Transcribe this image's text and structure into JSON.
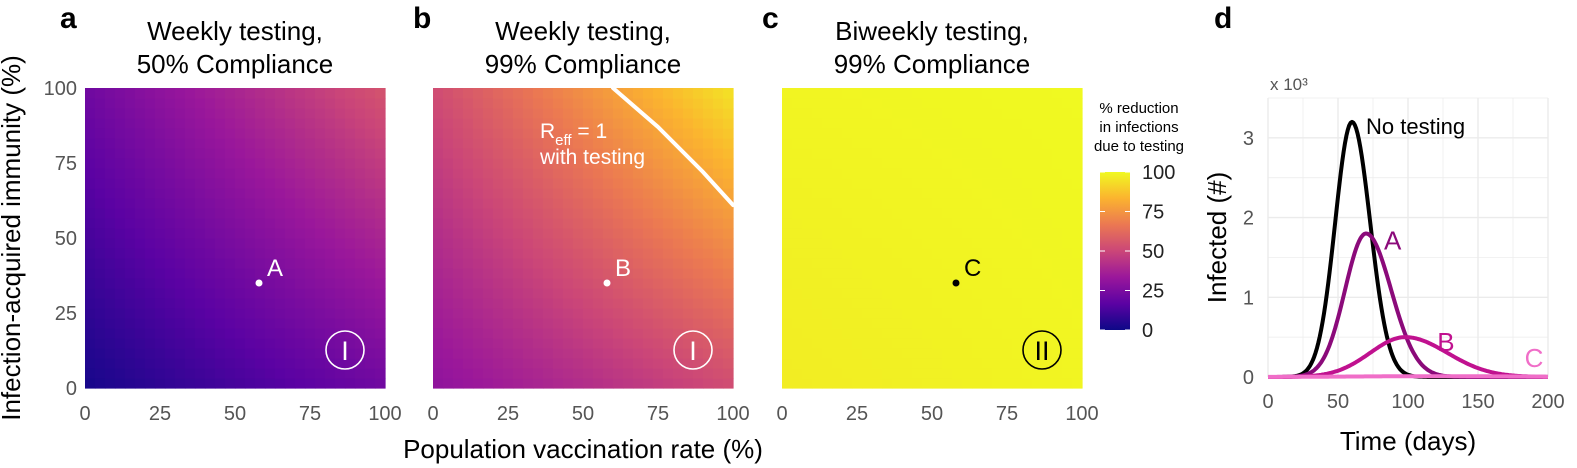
{
  "figure": {
    "shared_xlabel": "Population vaccination rate (%)",
    "shared_ylabel": "Infection-acquired immunity (%)"
  },
  "colorbar": {
    "title_lines": [
      "% reduction",
      "in infections",
      "due to testing"
    ],
    "ticks": [
      0,
      25,
      50,
      75,
      100
    ],
    "range": [
      0,
      100
    ],
    "stops": [
      "#0d0887",
      "#5b02a3",
      "#9a179b",
      "#cb4678",
      "#eb7852",
      "#fbb32f",
      "#f0f921"
    ]
  },
  "chart_data": [
    {
      "type": "heatmap",
      "panel": "a",
      "title_lines": [
        "Weekly testing,",
        "50% Compliance"
      ],
      "xlim": [
        0,
        100
      ],
      "ylim": [
        0,
        100
      ],
      "x_ticks": [
        0,
        25,
        50,
        75,
        100
      ],
      "y_ticks": [
        0,
        25,
        50,
        75,
        100
      ],
      "corner_values": {
        "x0_y0": 2,
        "x100_y0": 22,
        "x0_y100": 22,
        "x100_y100": 55
      },
      "point": {
        "label": "A",
        "x": 58,
        "y": 35,
        "color": "#ffffff"
      },
      "regime_label": "I"
    },
    {
      "type": "heatmap",
      "panel": "b",
      "title_lines": [
        "Weekly testing,",
        "99% Compliance"
      ],
      "xlim": [
        0,
        100
      ],
      "ylim": [
        0,
        100
      ],
      "x_ticks": [
        0,
        25,
        50,
        75,
        100
      ],
      "y_ticks": [
        0,
        25,
        50,
        75,
        100
      ],
      "corner_values": {
        "x0_y0": 30,
        "x100_y0": 52,
        "x0_y100": 52,
        "x100_y100": 95
      },
      "point": {
        "label": "B",
        "x": 58,
        "y": 35,
        "color": "#ffffff"
      },
      "contour": {
        "label_parts": [
          "R",
          "eff",
          " = 1",
          "with testing"
        ],
        "points": [
          [
            60,
            100
          ],
          [
            75,
            87
          ],
          [
            90,
            72
          ],
          [
            100,
            61
          ]
        ]
      },
      "regime_label": "I"
    },
    {
      "type": "heatmap",
      "panel": "c",
      "title_lines": [
        "Biweekly testing,",
        "99% Compliance"
      ],
      "xlim": [
        0,
        100
      ],
      "ylim": [
        0,
        100
      ],
      "x_ticks": [
        0,
        25,
        50,
        75,
        100
      ],
      "y_ticks": [
        0,
        25,
        50,
        75,
        100
      ],
      "corner_values": {
        "x0_y0": 97,
        "x100_y0": 99,
        "x0_y100": 99,
        "x100_y100": 100
      },
      "point": {
        "label": "C",
        "x": 58,
        "y": 35,
        "color": "#000000"
      },
      "regime_label": "II"
    },
    {
      "type": "line",
      "panel": "d",
      "multiplier_label": "x 10³",
      "xlabel": "Time (days)",
      "ylabel": "Infected (#)",
      "xlim": [
        0,
        200
      ],
      "ylim": [
        0,
        3.5
      ],
      "x_ticks": [
        0,
        50,
        100,
        150,
        200
      ],
      "y_ticks": [
        0,
        1,
        2,
        3
      ],
      "grid": true,
      "series": [
        {
          "name": "No testing",
          "color": "#000000",
          "peak_x": 60,
          "peak_y": 3.2,
          "sigma_left": 12,
          "sigma_right": 13
        },
        {
          "name": "A",
          "color": "#8b0a7a",
          "peak_x": 70,
          "peak_y": 1.8,
          "sigma_left": 15,
          "sigma_right": 18
        },
        {
          "name": "B",
          "color": "#c0118f",
          "peak_x": 98,
          "peak_y": 0.5,
          "sigma_left": 25,
          "sigma_right": 30
        },
        {
          "name": "C",
          "color": "#f06ec8",
          "peak_x": 120,
          "peak_y": 0.01,
          "sigma_left": 60,
          "sigma_right": 60
        }
      ]
    }
  ]
}
